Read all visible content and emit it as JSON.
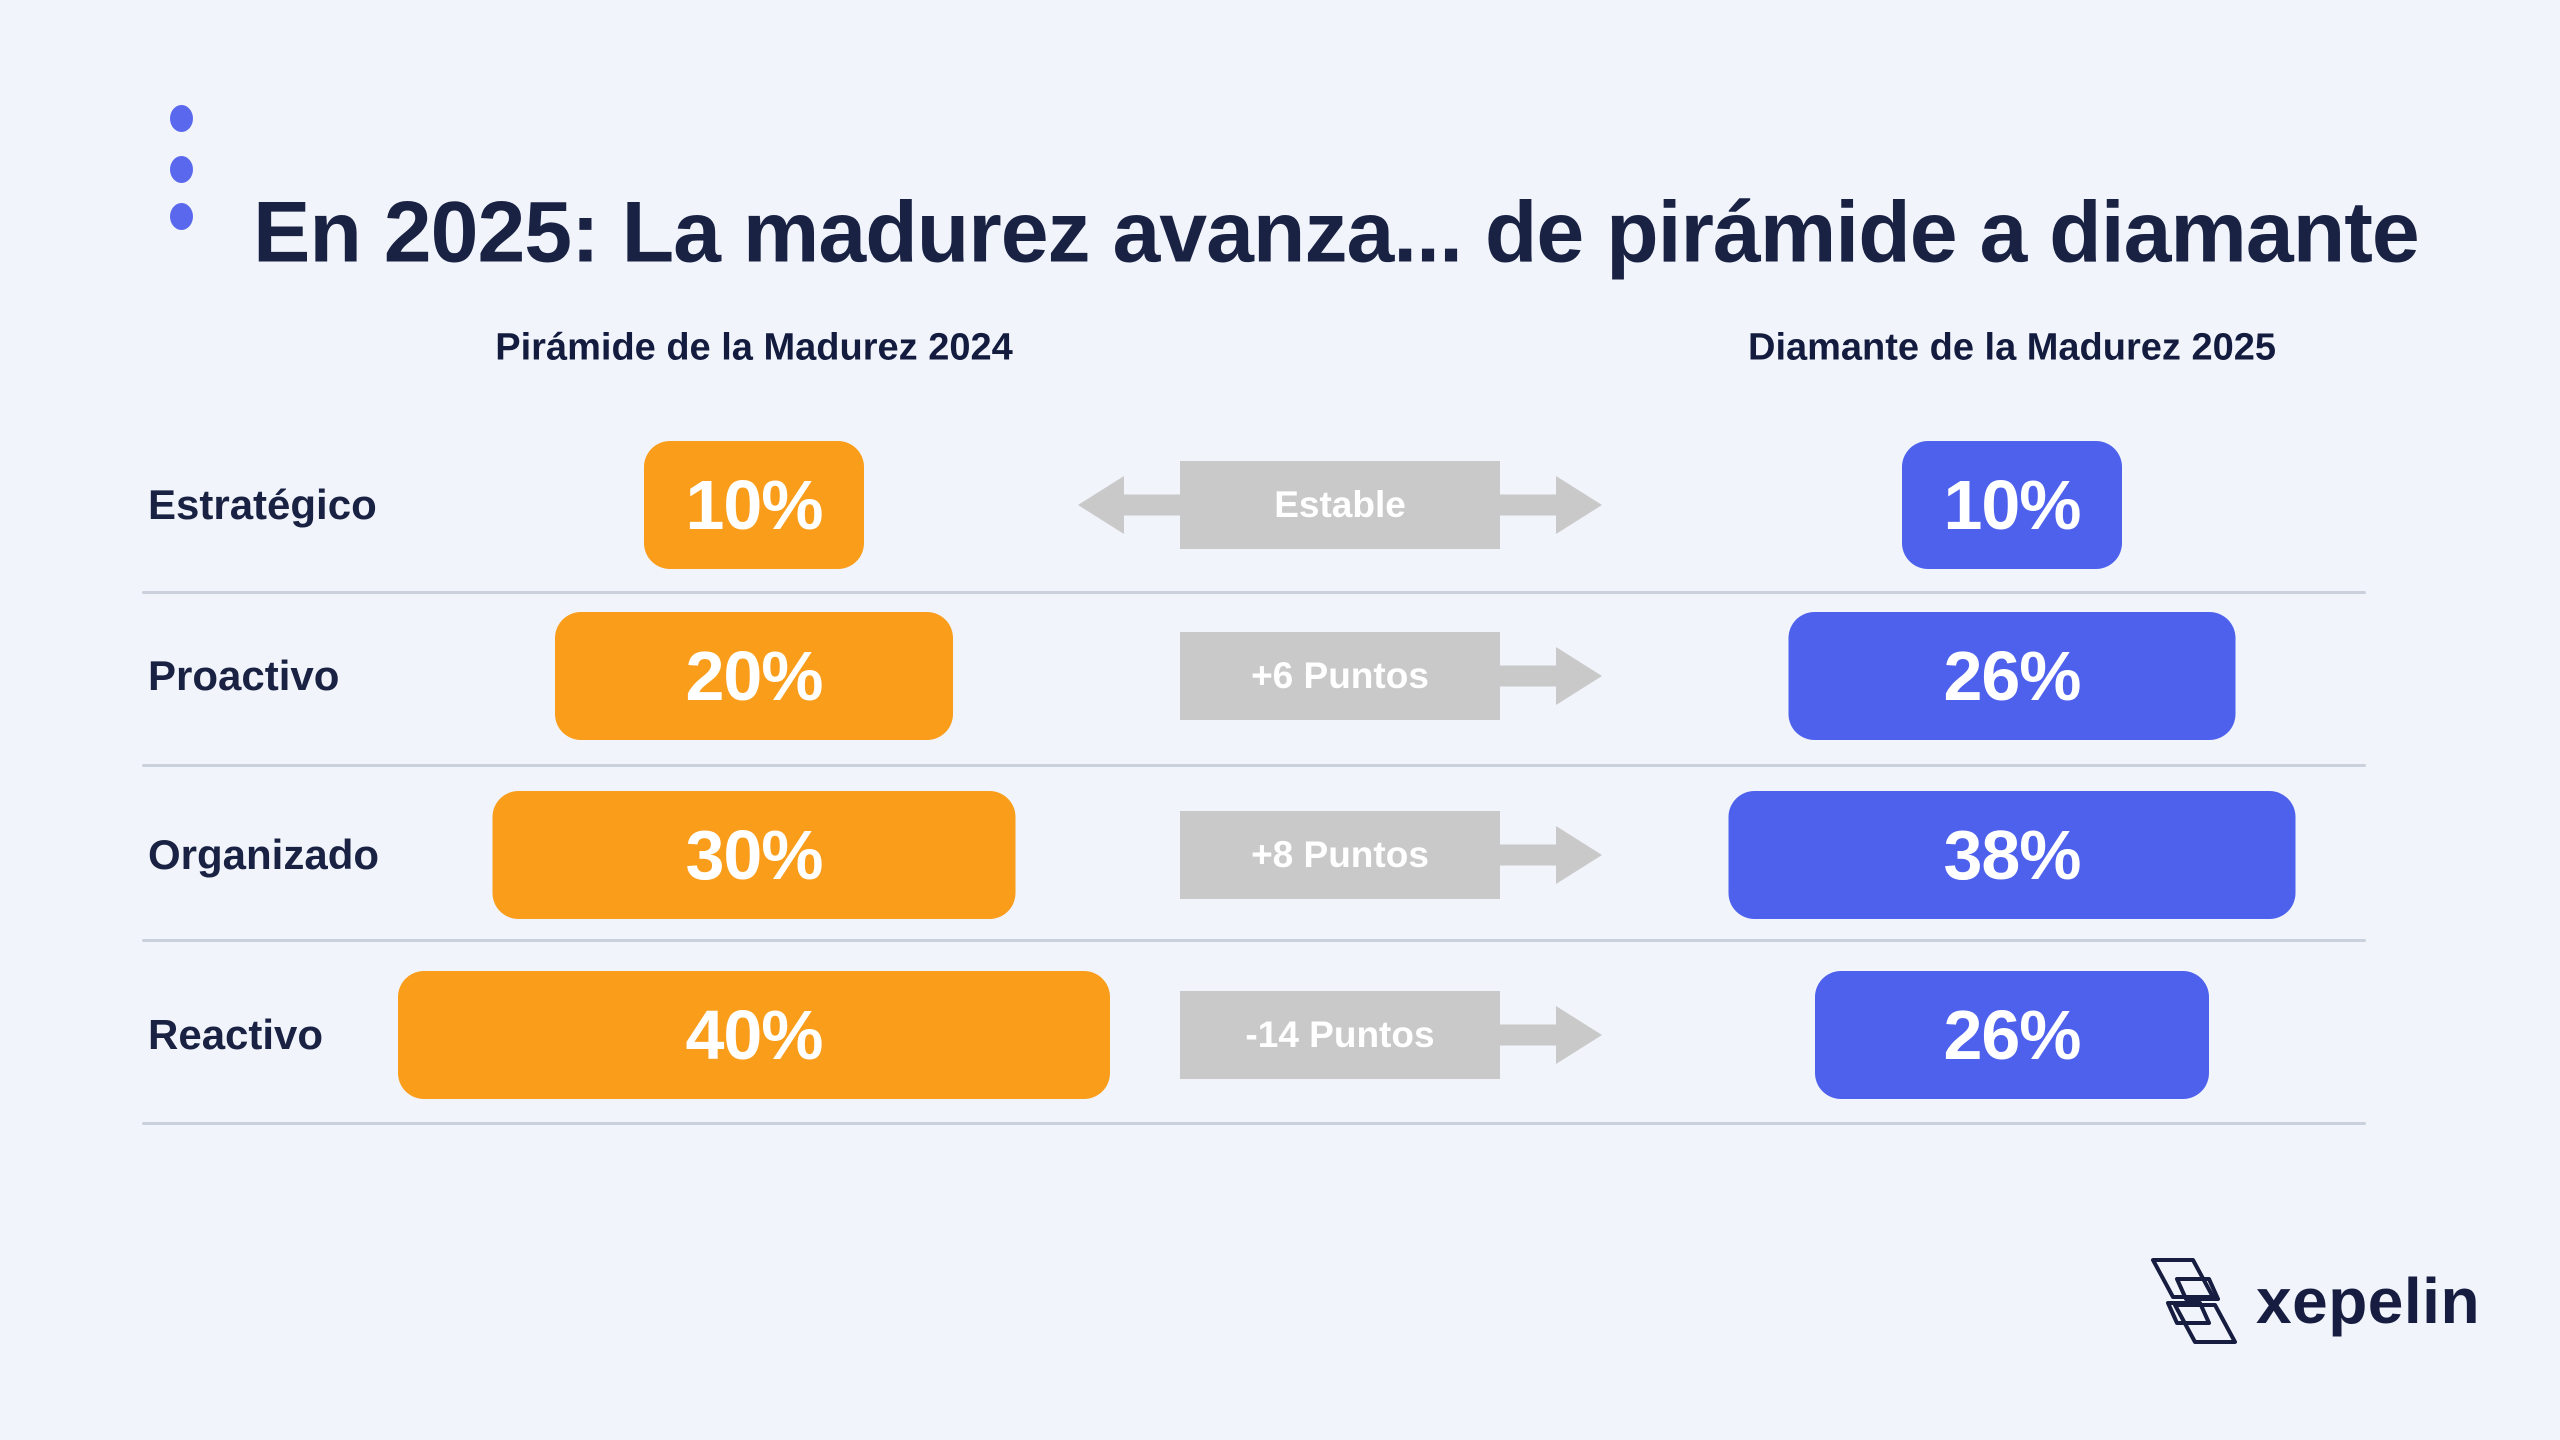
{
  "page": {
    "background_color": "#F1F4FA"
  },
  "header": {
    "title": "En 2025: La madurez avanza... de pirámide a diamante",
    "accent_dots_color": "#5A68EE",
    "dots_count": 3
  },
  "columns": {
    "left": "Pirámide de la Madurez 2024",
    "right": "Diamante de la Madurez 2025"
  },
  "chart_data": {
    "type": "bar",
    "orientation": "horizontal-paired",
    "title": "En 2025: La madurez avanza... de pirámide a diamante",
    "categories": [
      "Estratégico",
      "Proactivo",
      "Organizado",
      "Reactivo"
    ],
    "series": [
      {
        "name": "Pirámide de la Madurez 2024",
        "color": "#F99D1B",
        "unit": "%",
        "values": [
          10,
          20,
          30,
          40
        ]
      },
      {
        "name": "Diamante de la Madurez 2025",
        "color": "#4D61ED",
        "unit": "%",
        "values": [
          10,
          26,
          38,
          26
        ]
      }
    ],
    "deltas": [
      "Estable",
      "+6 Puntos",
      "+8 Puntos",
      "-14 Puntos"
    ],
    "grid": "row-dividers-only",
    "legend_position": "column-headers-top"
  },
  "rows": [
    {
      "label": "Estratégico",
      "left_value": "10%",
      "delta": "Estable",
      "right_value": "10%",
      "left_width_px": "220px",
      "right_width_px": "220px",
      "has_left_arrow": true
    },
    {
      "label": "Proactivo",
      "left_value": "20%",
      "delta": "+6 Puntos",
      "right_value": "26%",
      "left_width_px": "398px",
      "right_width_px": "447px",
      "has_left_arrow": false
    },
    {
      "label": "Organizado",
      "left_value": "30%",
      "delta": "+8 Puntos",
      "right_value": "38%",
      "left_width_px": "523px",
      "right_width_px": "567px",
      "has_left_arrow": false
    },
    {
      "label": "Reactivo",
      "left_value": "40%",
      "delta": "-14 Puntos",
      "right_value": "26%",
      "left_width_px": "712px",
      "right_width_px": "394px",
      "has_left_arrow": false
    }
  ],
  "footer": {
    "brand_wordmark": "xepelin"
  },
  "colors": {
    "orange": "#F99D1B",
    "blue": "#4D61ED",
    "gray": "#C9C9C9",
    "navy": "#1A2244",
    "divider": "#CBD1DC",
    "background": "#F1F4FA",
    "white": "#FFFFFF"
  }
}
